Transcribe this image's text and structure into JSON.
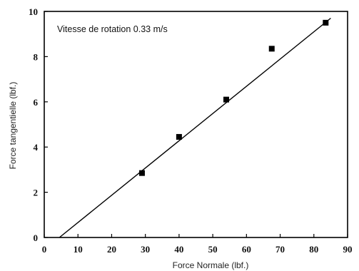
{
  "chart_data": {
    "type": "scatter",
    "annotation": "Vitesse de rotation 0.33 m/s",
    "xlabel": "Force Normale (lbf.)",
    "ylabel": "Force tangentielle (lbf.)",
    "xlim": [
      0,
      90
    ],
    "ylim": [
      0,
      10
    ],
    "x_ticks": [
      0,
      10,
      20,
      30,
      40,
      50,
      60,
      70,
      80,
      90
    ],
    "y_ticks": [
      0,
      2,
      4,
      6,
      8,
      10
    ],
    "x_tick_labels": [
      "0",
      "10",
      "20",
      "30",
      "40",
      "50",
      "60",
      "70",
      "80",
      "90"
    ],
    "y_tick_labels": [
      "0",
      "2",
      "4",
      "6",
      "8",
      "10"
    ],
    "grid": false,
    "series": [
      {
        "marker": "square",
        "x": [
          29,
          40,
          54,
          67.5,
          83.5
        ],
        "y": [
          2.85,
          4.45,
          6.1,
          8.35,
          9.5
        ]
      }
    ],
    "fit_line": {
      "x": [
        4.5,
        85
      ],
      "y": [
        0,
        9.7
      ]
    },
    "colors": {
      "marks": "#000000",
      "axes": "#000000"
    }
  }
}
